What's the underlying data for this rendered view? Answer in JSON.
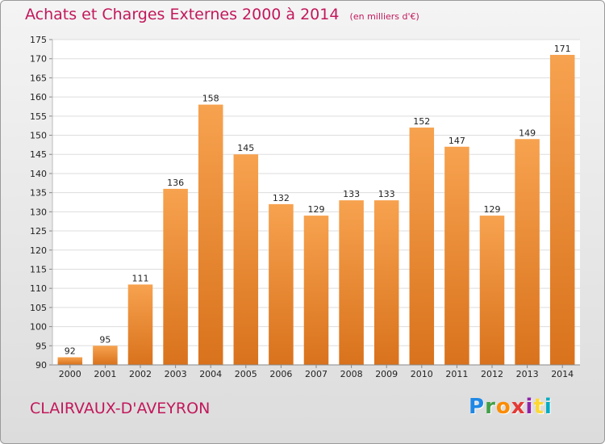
{
  "header": {
    "title": "Achats et Charges Externes 2000 à 2014",
    "subtitle": "(en milliers d'€)"
  },
  "footer": {
    "commune": "CLAIRVAUX-D'AVEYRON",
    "logo": [
      "P",
      "r",
      "o",
      "x",
      "i",
      "t",
      "i"
    ],
    "logo_colors": [
      "#1e88e5",
      "#43a047",
      "#fb8c00",
      "#e53935",
      "#8e24aa",
      "#fdd835",
      "#00acc1"
    ]
  },
  "chart_data": {
    "type": "bar",
    "title": "Achats et Charges Externes 2000 à 2014",
    "subtitle": "(en milliers d'€)",
    "categories": [
      "2000",
      "2001",
      "2002",
      "2003",
      "2004",
      "2005",
      "2006",
      "2007",
      "2008",
      "2009",
      "2010",
      "2011",
      "2012",
      "2013",
      "2014"
    ],
    "values": [
      92,
      95,
      111,
      136,
      158,
      145,
      132,
      129,
      133,
      133,
      152,
      147,
      129,
      149,
      171
    ],
    "ylim": [
      90,
      175
    ],
    "yticks": [
      90,
      95,
      100,
      105,
      110,
      115,
      120,
      125,
      130,
      135,
      140,
      145,
      150,
      155,
      160,
      165,
      170,
      175
    ],
    "grid": true,
    "bar_color_top": "#f7a24f",
    "bar_color_bottom": "#d9721c",
    "xlabel": "",
    "ylabel": ""
  }
}
